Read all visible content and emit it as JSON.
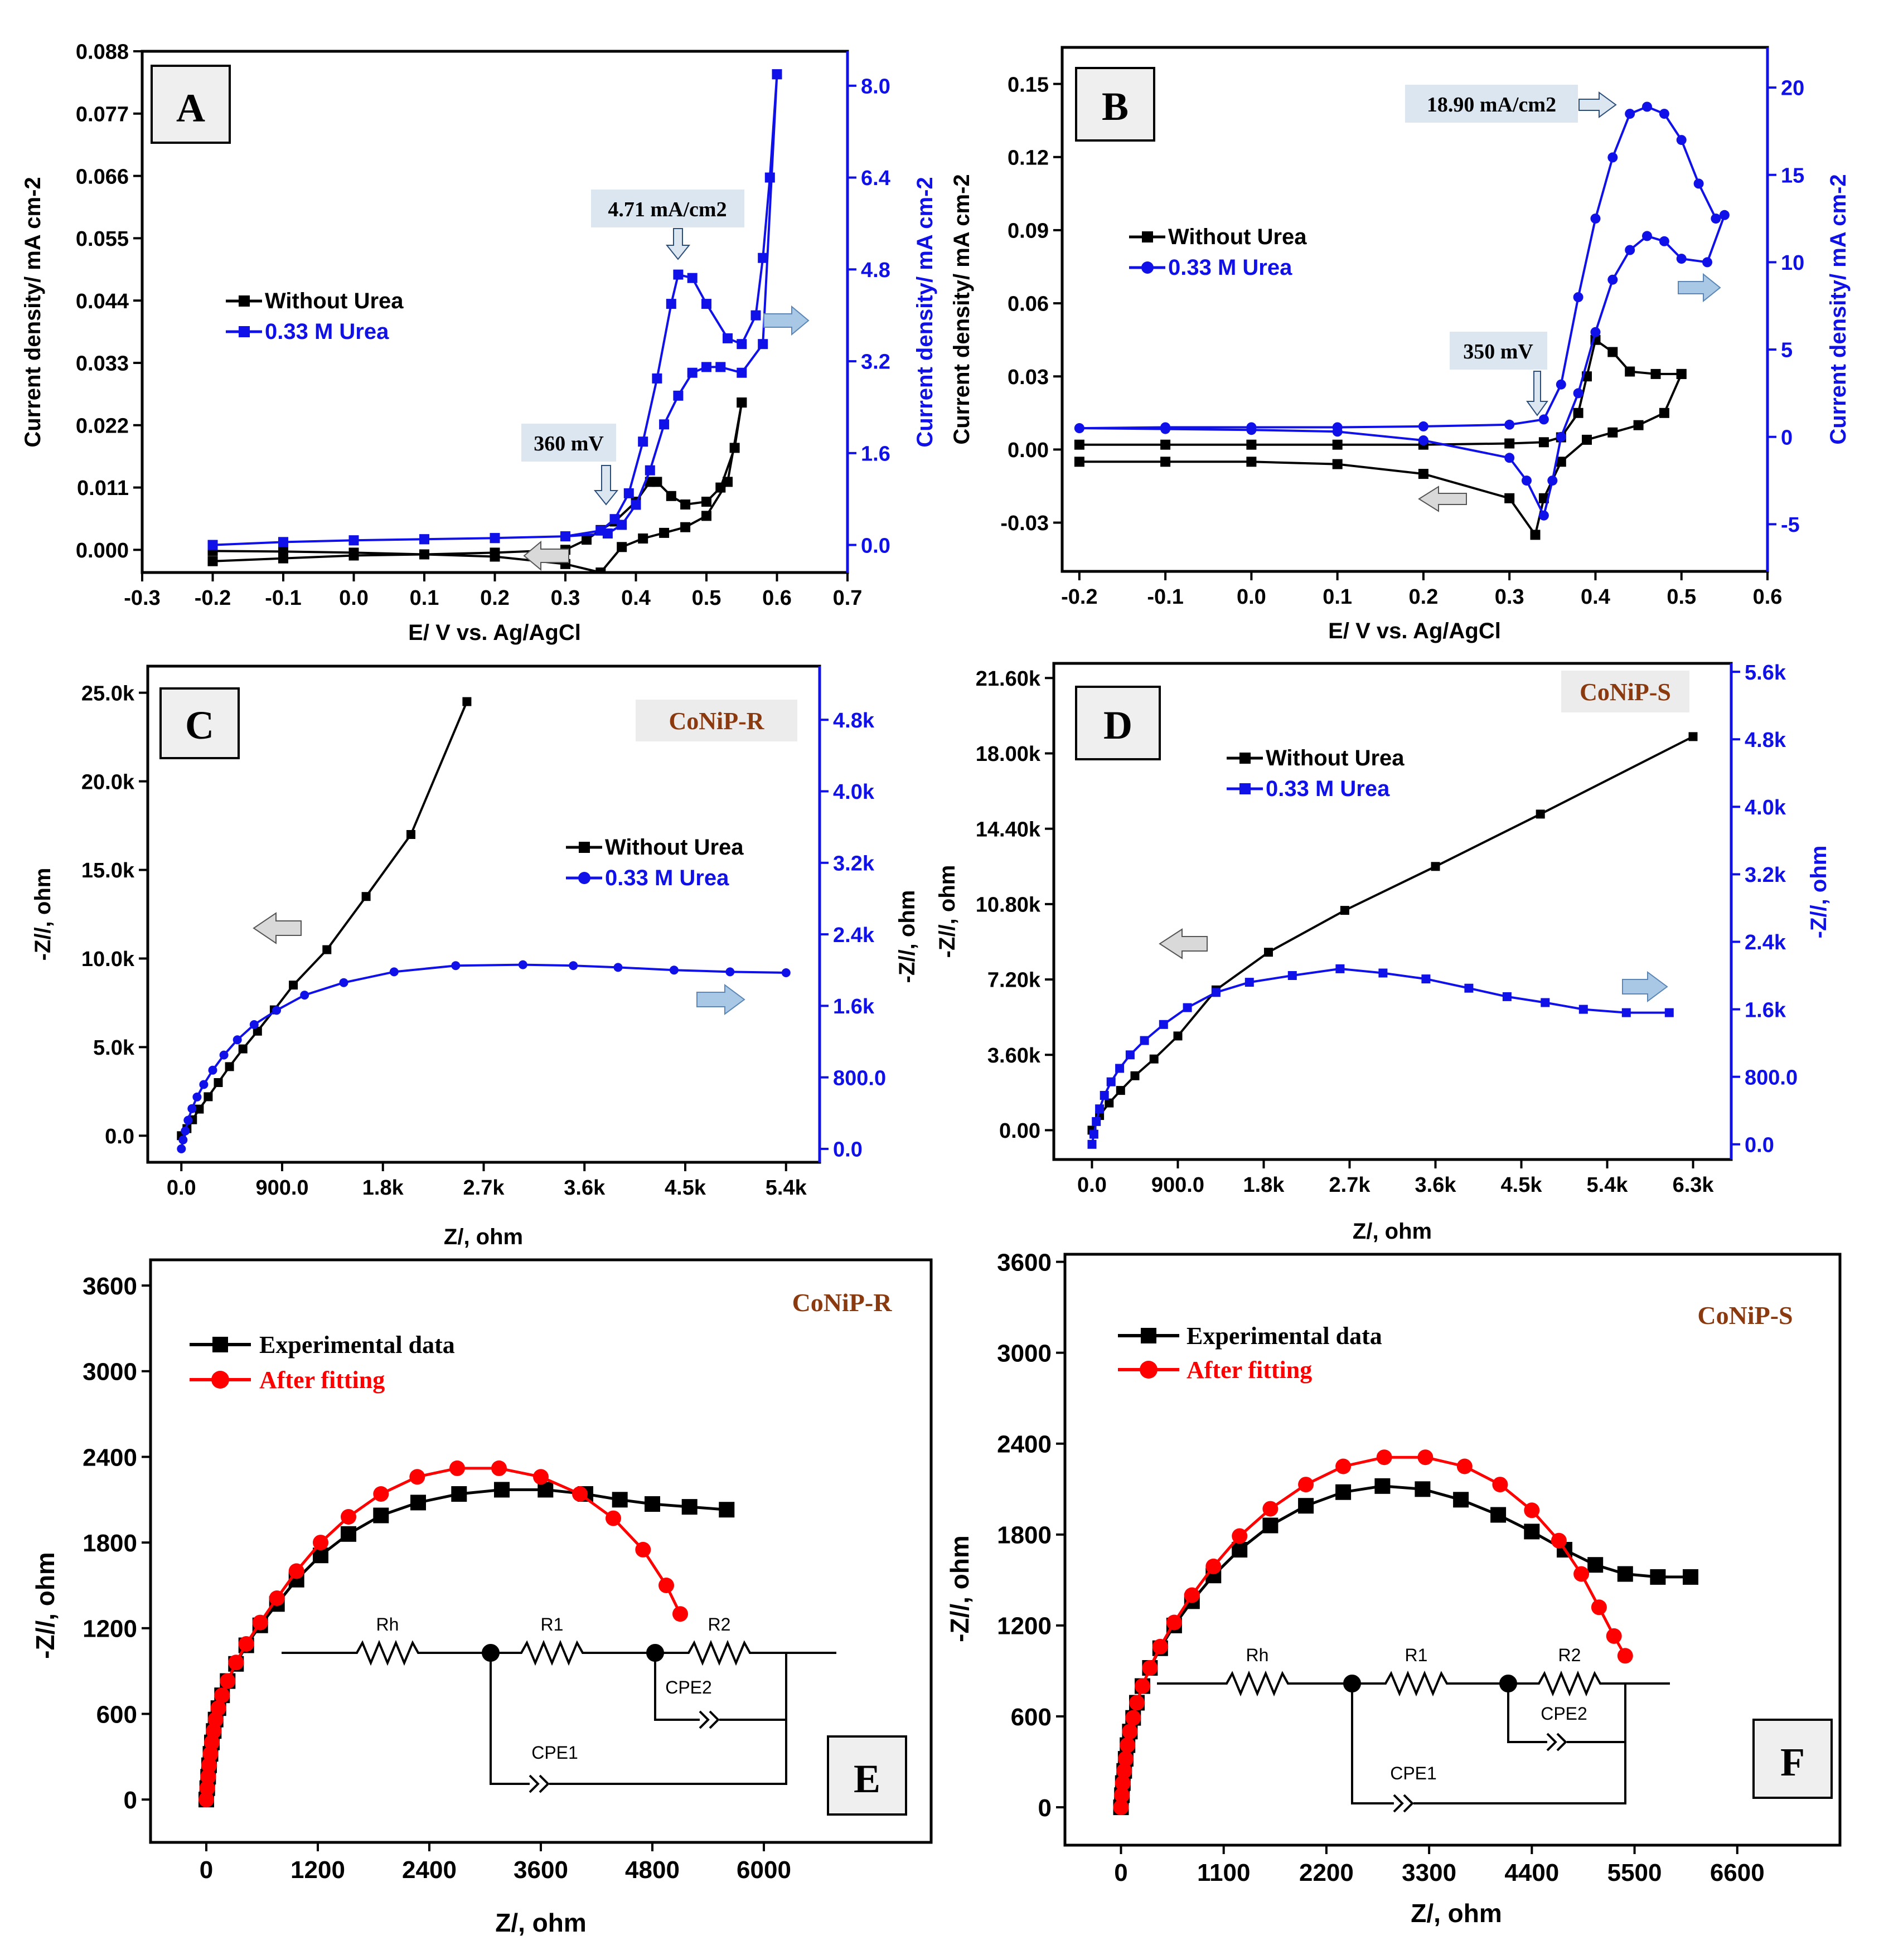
{
  "colors": {
    "black": "#000000",
    "blue": "#1010e8",
    "red": "#ff0000",
    "brown": "#8b3a0f",
    "tag_bg": "#dbe6f1",
    "arrow_fill": "#a9c8e6",
    "arrow_grey": "#d9d9d9",
    "panel_bg": "#efefef"
  },
  "chart_data": [
    {
      "id": "A",
      "type": "line",
      "panel_label": "A",
      "xlabel": "E/ V vs. Ag/AgCl",
      "ylabel": "Current density/ mA cm-2",
      "y2label": "Current density/ mA cm-2",
      "xlim": [
        -0.3,
        0.7
      ],
      "ylim": [
        -0.004,
        0.088
      ],
      "y2lim": [
        -0.48,
        8.6
      ],
      "xticks": [
        "-0.3",
        "-0.2",
        "-0.1",
        "0.0",
        "0.1",
        "0.2",
        "0.3",
        "0.4",
        "0.5",
        "0.6",
        "0.7"
      ],
      "yticks": [
        "0.000",
        "0.011",
        "0.022",
        "0.033",
        "0.044",
        "0.055",
        "0.066",
        "0.077",
        "0.088"
      ],
      "y2ticks": [
        "0.0",
        "1.6",
        "3.2",
        "4.8",
        "6.4",
        "8.0"
      ],
      "annotations": [
        "4.71 mA/cm2",
        "360 mV"
      ],
      "legend": [
        "Without Urea",
        "0.33 M Urea"
      ],
      "series": [
        {
          "name": "Without Urea",
          "axis": "left",
          "color": "black",
          "marker": "square",
          "x": [
            -0.2,
            -0.1,
            0.0,
            0.1,
            0.2,
            0.3,
            0.33,
            0.35,
            0.37,
            0.4,
            0.42,
            0.43,
            0.45,
            0.47,
            0.5,
            0.52,
            0.54,
            0.55,
            0.55,
            0.53,
            0.5,
            0.47,
            0.44,
            0.41,
            0.38,
            0.35,
            0.3,
            0.2,
            0.1,
            0.0,
            -0.1,
            -0.2
          ],
          "y": [
            -0.002,
            -0.0015,
            -0.001,
            -0.0008,
            -0.0005,
            0.0,
            0.0018,
            0.0035,
            0.005,
            0.0085,
            0.012,
            0.012,
            0.0095,
            0.008,
            0.0085,
            0.011,
            0.018,
            0.026,
            0.026,
            0.012,
            0.006,
            0.004,
            0.003,
            0.002,
            0.0005,
            -0.004,
            -0.0025,
            -0.0012,
            -0.0008,
            -0.0005,
            -0.0003,
            -0.0002
          ]
        },
        {
          "name": "0.33 M Urea",
          "axis": "right",
          "color": "blue",
          "marker": "square",
          "x": [
            -0.2,
            -0.1,
            0.0,
            0.1,
            0.2,
            0.3,
            0.35,
            0.37,
            0.39,
            0.41,
            0.43,
            0.45,
            0.46,
            0.48,
            0.5,
            0.53,
            0.55,
            0.57,
            0.58,
            0.59,
            0.6,
            0.6,
            0.58,
            0.55,
            0.52,
            0.5,
            0.48,
            0.46,
            0.44,
            0.42,
            0.4,
            0.38,
            0.36,
            0.3,
            0.2,
            0.1,
            0.0,
            -0.1,
            -0.2
          ],
          "y": [
            0.0,
            0.05,
            0.08,
            0.1,
            0.12,
            0.15,
            0.25,
            0.45,
            0.9,
            1.8,
            2.9,
            4.2,
            4.71,
            4.65,
            4.2,
            3.6,
            3.5,
            4.0,
            5.0,
            6.4,
            8.2,
            8.2,
            3.5,
            3.0,
            3.1,
            3.1,
            3.0,
            2.6,
            2.1,
            1.3,
            0.7,
            0.35,
            0.2,
            0.15,
            0.12,
            0.1,
            0.08,
            0.05,
            0.0
          ]
        }
      ]
    },
    {
      "id": "B",
      "type": "line",
      "panel_label": "B",
      "xlabel": "E/ V vs. Ag/AgCl",
      "ylabel": "Current density/ mA cm-2",
      "y2label": "Current density/ mA cm-2",
      "xlim": [
        -0.22,
        0.6
      ],
      "ylim": [
        -0.05,
        0.165
      ],
      "y2lim": [
        -7.7,
        22.3
      ],
      "xticks": [
        "-0.2",
        "-0.1",
        "0.0",
        "0.1",
        "0.2",
        "0.3",
        "0.4",
        "0.5",
        "0.6"
      ],
      "yticks": [
        "-0.03",
        "0.00",
        "0.03",
        "0.06",
        "0.09",
        "0.12",
        "0.15"
      ],
      "y2ticks": [
        "-5",
        "0",
        "5",
        "10",
        "15",
        "20"
      ],
      "annotations": [
        "18.90 mA/cm2",
        "350 mV"
      ],
      "legend": [
        "Without Urea",
        "0.33 M Urea"
      ],
      "series": [
        {
          "name": "Without Urea",
          "axis": "left",
          "color": "black",
          "marker": "square",
          "x": [
            -0.2,
            -0.1,
            0.0,
            0.1,
            0.2,
            0.3,
            0.34,
            0.36,
            0.38,
            0.39,
            0.4,
            0.42,
            0.44,
            0.47,
            0.5,
            0.5,
            0.48,
            0.45,
            0.42,
            0.39,
            0.36,
            0.34,
            0.33,
            0.3,
            0.2,
            0.1,
            0.0,
            -0.1,
            -0.2
          ],
          "y": [
            0.002,
            0.002,
            0.002,
            0.002,
            0.002,
            0.0025,
            0.003,
            0.005,
            0.015,
            0.03,
            0.045,
            0.04,
            0.032,
            0.031,
            0.031,
            0.031,
            0.015,
            0.01,
            0.007,
            0.004,
            -0.005,
            -0.02,
            -0.035,
            -0.02,
            -0.01,
            -0.006,
            -0.005,
            -0.005,
            -0.005
          ]
        },
        {
          "name": "0.33 M Urea",
          "axis": "right",
          "color": "blue",
          "marker": "circle",
          "x": [
            -0.2,
            -0.1,
            0.0,
            0.1,
            0.2,
            0.3,
            0.34,
            0.36,
            0.38,
            0.4,
            0.42,
            0.44,
            0.46,
            0.48,
            0.5,
            0.52,
            0.54,
            0.55,
            0.53,
            0.5,
            0.48,
            0.46,
            0.44,
            0.42,
            0.4,
            0.38,
            0.36,
            0.35,
            0.34,
            0.32,
            0.3,
            0.2,
            0.1,
            0.0,
            -0.1,
            -0.2
          ],
          "y": [
            0.5,
            0.55,
            0.55,
            0.55,
            0.6,
            0.7,
            1.0,
            3.0,
            8.0,
            12.5,
            16.0,
            18.5,
            18.9,
            18.5,
            17.0,
            14.5,
            12.5,
            12.7,
            10.0,
            10.2,
            11.2,
            11.5,
            10.7,
            9.0,
            6.0,
            2.5,
            0.0,
            -2.5,
            -4.5,
            -2.5,
            -1.2,
            -0.2,
            0.3,
            0.4,
            0.45,
            0.5
          ]
        }
      ]
    },
    {
      "id": "C",
      "type": "line",
      "panel_label": "C",
      "material": "CoNiP-R",
      "xlabel": "Z/, ohm",
      "ylabel": "-Z//, ohm",
      "y2label": "-Z//, ohm",
      "xlim": [
        -300,
        5700
      ],
      "ylim": [
        -1500,
        26500
      ],
      "y2lim": [
        -150,
        5400
      ],
      "xticks": [
        "0.0",
        "900.0",
        "1.8k",
        "2.7k",
        "3.6k",
        "4.5k",
        "5.4k"
      ],
      "yticks": [
        "0.0",
        "5.0k",
        "10.0k",
        "15.0k",
        "20.0k",
        "25.0k"
      ],
      "y2ticks": [
        "0.0",
        "800.0",
        "1.6k",
        "2.4k",
        "3.2k",
        "4.0k",
        "4.8k"
      ],
      "legend": [
        "Without Urea",
        "0.33 M Urea"
      ],
      "series": [
        {
          "name": "Without Urea",
          "axis": "left",
          "color": "black",
          "marker": "square",
          "x": [
            0,
            50,
            100,
            160,
            240,
            330,
            430,
            550,
            680,
            830,
            1000,
            1300,
            1650,
            2050,
            2550
          ],
          "y": [
            0,
            400,
            900,
            1500,
            2200,
            3000,
            3900,
            4900,
            5900,
            7100,
            8500,
            10500,
            13500,
            17000,
            24500
          ]
        },
        {
          "name": "0.33 M Urea",
          "axis": "right",
          "color": "blue",
          "marker": "circle",
          "x": [
            0,
            15,
            35,
            60,
            95,
            140,
            200,
            280,
            380,
            500,
            650,
            850,
            1100,
            1450,
            1900,
            2450,
            3050,
            3500,
            3900,
            4400,
            4900,
            5400
          ],
          "y": [
            0,
            100,
            200,
            320,
            450,
            580,
            720,
            880,
            1050,
            1220,
            1390,
            1550,
            1720,
            1860,
            1980,
            2050,
            2060,
            2050,
            2030,
            2000,
            1980,
            1970
          ]
        }
      ]
    },
    {
      "id": "D",
      "type": "line",
      "panel_label": "D",
      "material": "CoNiP-S",
      "xlabel": "Z/, ohm",
      "ylabel": "-Z//, ohm",
      "y2label": "-Z//, ohm",
      "xlim": [
        -400,
        6700
      ],
      "ylim": [
        -1400,
        22300
      ],
      "y2lim": [
        -180,
        5700
      ],
      "xticks": [
        "0.0",
        "900.0",
        "1.8k",
        "2.7k",
        "3.6k",
        "4.5k",
        "5.4k",
        "6.3k"
      ],
      "yticks": [
        "0.00",
        "3.60k",
        "7.20k",
        "10.80k",
        "14.40k",
        "18.00k",
        "21.60k"
      ],
      "y2ticks": [
        "0.0",
        "800.0",
        "1.6k",
        "2.4k",
        "3.2k",
        "4.0k",
        "4.8k",
        "5.6k"
      ],
      "legend": [
        "Without Urea",
        "0.33 M Urea"
      ],
      "series": [
        {
          "name": "Without Urea",
          "axis": "left",
          "color": "black",
          "marker": "square",
          "x": [
            0,
            80,
            180,
            300,
            450,
            650,
            900,
            1300,
            1850,
            2650,
            3600,
            4700,
            6300
          ],
          "y": [
            0,
            700,
            1300,
            1900,
            2600,
            3400,
            4500,
            6700,
            8500,
            10500,
            12600,
            15100,
            18800
          ]
        },
        {
          "name": "0.33 M Urea",
          "axis": "right",
          "color": "blue",
          "marker": "square",
          "x": [
            0,
            20,
            45,
            80,
            130,
            200,
            290,
            400,
            550,
            750,
            1000,
            1300,
            1650,
            2100,
            2600,
            3050,
            3500,
            3950,
            4350,
            4750,
            5150,
            5600,
            6050
          ],
          "y": [
            0,
            120,
            270,
            420,
            580,
            740,
            900,
            1060,
            1230,
            1420,
            1620,
            1800,
            1920,
            2000,
            2080,
            2030,
            1960,
            1850,
            1750,
            1680,
            1600,
            1560,
            1560
          ]
        }
      ]
    },
    {
      "id": "E",
      "type": "line",
      "panel_label": "E",
      "material": "CoNiP-R",
      "xlabel": "Z/, ohm",
      "ylabel": "-Z//, ohm",
      "xlim": [
        -600,
        7800
      ],
      "ylim": [
        -300,
        3780
      ],
      "xticks": [
        "0",
        "1200",
        "2400",
        "3600",
        "4800",
        "6000"
      ],
      "yticks": [
        "0",
        "600",
        "1200",
        "1800",
        "2400",
        "3000",
        "3600"
      ],
      "legend": [
        "Experimental data",
        "After fitting"
      ],
      "circuit_labels": [
        "Rh",
        "R1",
        "R2",
        "CPE1",
        "CPE2"
      ],
      "series": [
        {
          "name": "Experimental data",
          "color": "black",
          "marker": "square",
          "x": [
            0,
            10,
            20,
            30,
            45,
            60,
            80,
            100,
            130,
            170,
            230,
            320,
            430,
            580,
            760,
            970,
            1230,
            1530,
            1880,
            2280,
            2720,
            3180,
            3650,
            4080,
            4450,
            4800,
            5200,
            5600
          ],
          "y": [
            0,
            80,
            160,
            240,
            320,
            400,
            480,
            560,
            640,
            730,
            830,
            950,
            1080,
            1220,
            1370,
            1540,
            1710,
            1860,
            1990,
            2080,
            2140,
            2170,
            2170,
            2140,
            2100,
            2070,
            2050,
            2030
          ]
        },
        {
          "name": "After fitting",
          "color": "red",
          "marker": "circle",
          "x": [
            0,
            10,
            20,
            30,
            45,
            60,
            80,
            100,
            130,
            170,
            230,
            320,
            430,
            580,
            760,
            970,
            1230,
            1530,
            1880,
            2270,
            2700,
            3150,
            3600,
            4020,
            4380,
            4700,
            4950,
            5100
          ],
          "y": [
            0,
            80,
            160,
            240,
            320,
            400,
            480,
            560,
            640,
            730,
            830,
            960,
            1090,
            1240,
            1410,
            1600,
            1800,
            1980,
            2140,
            2260,
            2320,
            2320,
            2260,
            2140,
            1970,
            1750,
            1500,
            1300
          ]
        }
      ]
    },
    {
      "id": "F",
      "type": "line",
      "panel_label": "F",
      "material": "CoNiP-S",
      "xlabel": "Z/, ohm",
      "ylabel": "-Z//, ohm",
      "xlim": [
        -600,
        7700
      ],
      "ylim": [
        -250,
        3650
      ],
      "xticks": [
        "0",
        "1100",
        "2200",
        "3300",
        "4400",
        "5500",
        "6600"
      ],
      "yticks": [
        "0",
        "600",
        "1200",
        "1800",
        "2400",
        "3000",
        "3600"
      ],
      "legend": [
        "Experimental data",
        "After fitting"
      ],
      "circuit_labels": [
        "Rh",
        "R1",
        "R2",
        "CPE1",
        "CPE2"
      ],
      "series": [
        {
          "name": "Experimental data",
          "color": "black",
          "marker": "square",
          "x": [
            0,
            10,
            20,
            35,
            50,
            70,
            95,
            130,
            170,
            230,
            310,
            420,
            570,
            760,
            990,
            1270,
            1600,
            1980,
            2380,
            2800,
            3230,
            3640,
            4040,
            4400,
            4750,
            5080,
            5400,
            5750,
            6100
          ],
          "y": [
            0,
            80,
            160,
            240,
            320,
            410,
            500,
            590,
            690,
            800,
            920,
            1050,
            1200,
            1360,
            1530,
            1700,
            1860,
            1990,
            2080,
            2120,
            2100,
            2030,
            1930,
            1820,
            1700,
            1600,
            1540,
            1520,
            1520
          ]
        },
        {
          "name": "After fitting",
          "color": "red",
          "marker": "circle",
          "x": [
            0,
            10,
            20,
            35,
            50,
            70,
            95,
            130,
            170,
            230,
            310,
            420,
            570,
            760,
            990,
            1270,
            1600,
            1980,
            2380,
            2820,
            3260,
            3680,
            4060,
            4400,
            4690,
            4930,
            5120,
            5280,
            5400
          ],
          "y": [
            0,
            80,
            160,
            240,
            320,
            410,
            500,
            590,
            690,
            800,
            920,
            1060,
            1220,
            1400,
            1590,
            1790,
            1970,
            2130,
            2250,
            2310,
            2310,
            2250,
            2130,
            1960,
            1760,
            1540,
            1320,
            1130,
            1000
          ]
        }
      ]
    }
  ]
}
